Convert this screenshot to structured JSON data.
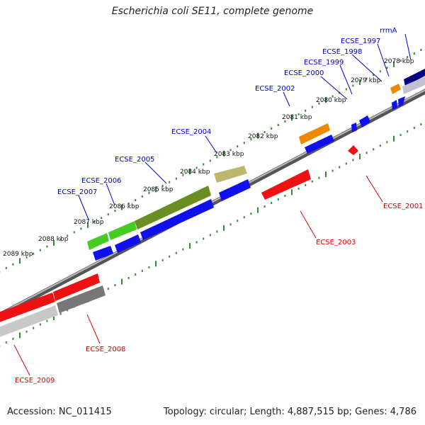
{
  "title": "Escherichia coli SE11, complete genome",
  "accession_text": "Accession: NC_011415",
  "topology_text": "Topology: circular; Length: 4,887,515 bp; Genes: 4,786",
  "colors": {
    "label_plus": "#0000cc",
    "label_minus": "#dd0000",
    "backbone": "#888888",
    "tick": "#2e8b2e",
    "cds_blue": "#1010ee",
    "cds_red": "#ee1111",
    "rrna_orange": "#ee8800",
    "gray_gene": "#777777",
    "green_light": "#44cc22",
    "green_dark": "#6b8e23",
    "olive_light": "#bdb76b",
    "navy": "#000080"
  },
  "kbp_labels": [
    "2078 kbp",
    "2079 kbp",
    "2080 kbp",
    "2081 kbp",
    "2082 kbp",
    "2083 kbp",
    "2084 kbp",
    "2085 kbp",
    "2086 kbp",
    "2087 kbp",
    "2088 kbp",
    "2089 kbp"
  ],
  "gene_labels": {
    "rrmA": "rrmA",
    "ECSE_1997": "ECSE_1997",
    "ECSE_1998": "ECSE_1998",
    "ECSE_1999": "ECSE_1999",
    "ECSE_2000": "ECSE_2000",
    "ECSE_2002": "ECSE_2002",
    "ECSE_2004": "ECSE_2004",
    "ECSE_2005": "ECSE_2005",
    "ECSE_2006": "ECSE_2006",
    "ECSE_2007": "ECSE_2007",
    "ECSE_2001": "ECSE_2001",
    "ECSE_2003": "ECSE_2003",
    "ECSE_2008": "ECSE_2008",
    "ECSE_2009": "ECSE_2009"
  }
}
